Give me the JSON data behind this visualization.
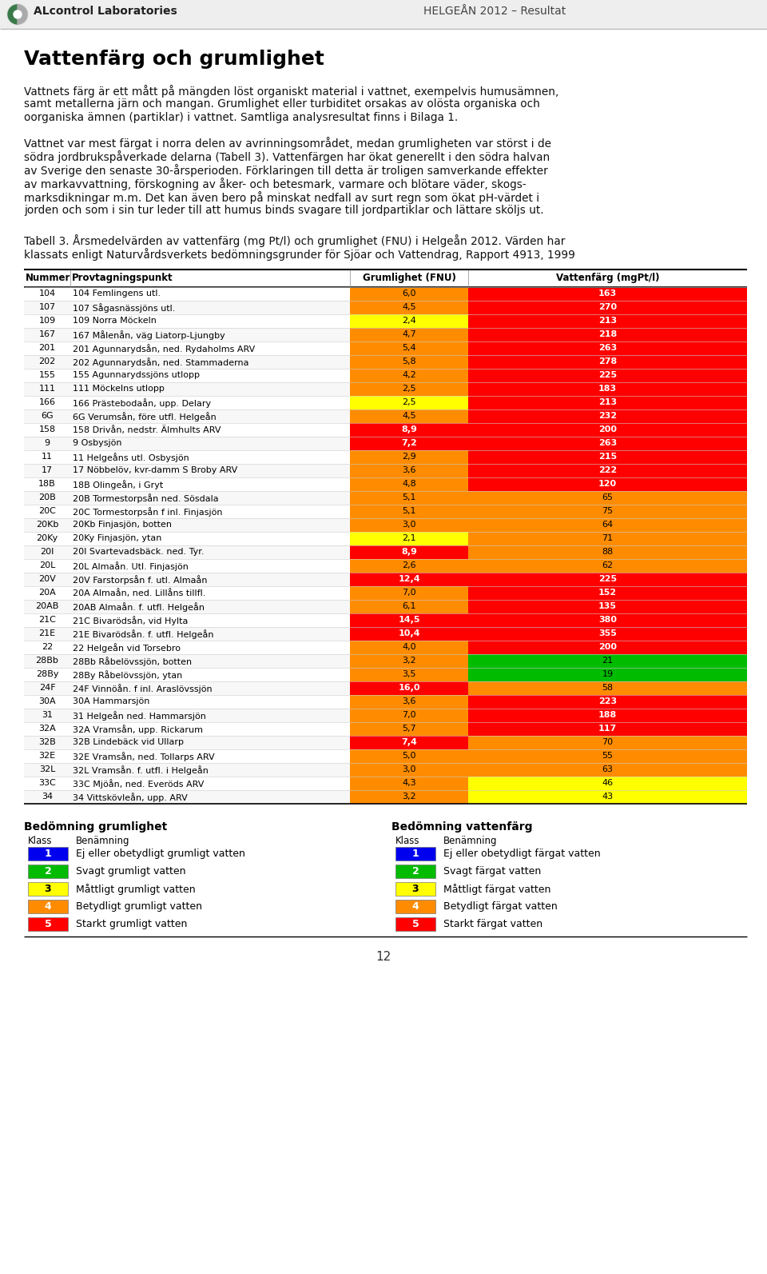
{
  "header_left": "ALcontrol Laboratories",
  "header_right": "HELGEÅN 2012 – Resultat",
  "title": "Vattenfärg och grumlighet",
  "body_text_p1": [
    "Vattnets färg är ett mått på mängden löst organiskt material i vattnet, exempelvis humusämnen,",
    "samt metallerna järn och mangan. Grumlighet eller turbiditet orsakas av olösta organiska och",
    "oorganiska ämnen (partiklar) i vattnet. Samtliga analysresultat finns i Bilaga 1."
  ],
  "body_text_p2": [
    "Vattnet var mest färgat i norra delen av avrinningsområdet, medan grumligheten var störst i de",
    "södra jordbrukspåverkade delarna (Tabell 3). Vattenfärgen har ökat generellt i den södra halvan",
    "av Sverige den senaste 30-årsperioden. Förklaringen till detta är troligen samverkande effekter",
    "av markavvattning, förskogning av åker- och betesmark, varmare och blötare väder, skogs-",
    "marksdikningar m.m. Det kan även bero på minskat nedfall av surt regn som ökat pH-värdet i",
    "jorden och som i sin tur leder till att humus binds svagare till jordpartiklar och lättare sköljs ut."
  ],
  "table_caption_lines": [
    "Tabell 3. Årsmedelvärden av vattenfärg (mg Pt/l) och grumlighet (FNU) i Helgeån 2012. Värden har",
    "klassats enligt Naturvårdsverkets bedömningsgrunder för Sjöar och Vattendrag, Rapport 4913, 1999"
  ],
  "rows": [
    {
      "num": "104",
      "name": "104 Femlingens utl.",
      "grum_val": "6,0",
      "grum_color": "#FF8C00",
      "farg_val": "163",
      "farg_color": "#FF0000"
    },
    {
      "num": "107",
      "name": "107 Sågasnässjöns utl.",
      "grum_val": "4,5",
      "grum_color": "#FF8C00",
      "farg_val": "270",
      "farg_color": "#FF0000"
    },
    {
      "num": "109",
      "name": "109 Norra Möckeln",
      "grum_val": "2,4",
      "grum_color": "#FFFF00",
      "farg_val": "213",
      "farg_color": "#FF0000"
    },
    {
      "num": "167",
      "name": "167 Målenån, väg Liatorp-Ljungby",
      "grum_val": "4,7",
      "grum_color": "#FF8C00",
      "farg_val": "218",
      "farg_color": "#FF0000"
    },
    {
      "num": "201",
      "name": "201 Agunnarydsån, ned. Rydaholms ARV",
      "grum_val": "5,4",
      "grum_color": "#FF8C00",
      "farg_val": "263",
      "farg_color": "#FF0000"
    },
    {
      "num": "202",
      "name": "202 Agunnarydsån, ned. Stammaderna",
      "grum_val": "5,8",
      "grum_color": "#FF8C00",
      "farg_val": "278",
      "farg_color": "#FF0000"
    },
    {
      "num": "155",
      "name": "155 Agunnarydssjöns utlopp",
      "grum_val": "4,2",
      "grum_color": "#FF8C00",
      "farg_val": "225",
      "farg_color": "#FF0000"
    },
    {
      "num": "111",
      "name": "111 Möckelns utlopp",
      "grum_val": "2,5",
      "grum_color": "#FF8C00",
      "farg_val": "183",
      "farg_color": "#FF0000"
    },
    {
      "num": "166",
      "name": "166 Prästebodaån, upp. Delary",
      "grum_val": "2,5",
      "grum_color": "#FFFF00",
      "farg_val": "213",
      "farg_color": "#FF0000"
    },
    {
      "num": "6G",
      "name": "6G Verumsån, före utfl. Helgeån",
      "grum_val": "4,5",
      "grum_color": "#FF8C00",
      "farg_val": "232",
      "farg_color": "#FF0000"
    },
    {
      "num": "158",
      "name": "158 Drivån, nedstr. Älmhults ARV",
      "grum_val": "8,9",
      "grum_color": "#FF0000",
      "farg_val": "200",
      "farg_color": "#FF0000"
    },
    {
      "num": "9",
      "name": "9 Osbysjön",
      "grum_val": "7,2",
      "grum_color": "#FF0000",
      "farg_val": "263",
      "farg_color": "#FF0000"
    },
    {
      "num": "11",
      "name": "11 Helgeåns utl. Osbysjön",
      "grum_val": "2,9",
      "grum_color": "#FF8C00",
      "farg_val": "215",
      "farg_color": "#FF0000"
    },
    {
      "num": "17",
      "name": "17 Nöbbelöv, kvr-damm S Broby ARV",
      "grum_val": "3,6",
      "grum_color": "#FF8C00",
      "farg_val": "222",
      "farg_color": "#FF0000"
    },
    {
      "num": "18B",
      "name": "18B Olingeån, i Gryt",
      "grum_val": "4,8",
      "grum_color": "#FF8C00",
      "farg_val": "120",
      "farg_color": "#FF0000"
    },
    {
      "num": "20B",
      "name": "20B Tormestorpsån ned. Sösdala",
      "grum_val": "5,1",
      "grum_color": "#FF8C00",
      "farg_val": "65",
      "farg_color": "#FF8C00"
    },
    {
      "num": "20C",
      "name": "20C Tormestorpsån f inl. Finjasjön",
      "grum_val": "5,1",
      "grum_color": "#FF8C00",
      "farg_val": "75",
      "farg_color": "#FF8C00"
    },
    {
      "num": "20Kb",
      "name": "20Kb Finjasjön, botten",
      "grum_val": "3,0",
      "grum_color": "#FF8C00",
      "farg_val": "64",
      "farg_color": "#FF8C00"
    },
    {
      "num": "20Ky",
      "name": "20Ky Finjasjön, ytan",
      "grum_val": "2,1",
      "grum_color": "#FFFF00",
      "farg_val": "71",
      "farg_color": "#FF8C00"
    },
    {
      "num": "20I",
      "name": "20I Svartevadsbäck. ned. Tyr.",
      "grum_val": "8,9",
      "grum_color": "#FF0000",
      "farg_val": "88",
      "farg_color": "#FF8C00"
    },
    {
      "num": "20L",
      "name": "20L Almaån. Utl. Finjasjön",
      "grum_val": "2,6",
      "grum_color": "#FF8C00",
      "farg_val": "62",
      "farg_color": "#FF8C00"
    },
    {
      "num": "20V",
      "name": "20V Farstorpsån f. utl. Almaån",
      "grum_val": "12,4",
      "grum_color": "#FF0000",
      "farg_val": "225",
      "farg_color": "#FF0000"
    },
    {
      "num": "20A",
      "name": "20A Almaån, ned. Lillåns tillfl.",
      "grum_val": "7,0",
      "grum_color": "#FF8C00",
      "farg_val": "152",
      "farg_color": "#FF0000"
    },
    {
      "num": "20AB",
      "name": "20AB Almaån. f. utfl. Helgeån",
      "grum_val": "6,1",
      "grum_color": "#FF8C00",
      "farg_val": "135",
      "farg_color": "#FF0000"
    },
    {
      "num": "21C",
      "name": "21C Bivarödsån, vid Hylta",
      "grum_val": "14,5",
      "grum_color": "#FF0000",
      "farg_val": "380",
      "farg_color": "#FF0000"
    },
    {
      "num": "21E",
      "name": "21E Bivarödsån. f. utfl. Helgeån",
      "grum_val": "10,4",
      "grum_color": "#FF0000",
      "farg_val": "355",
      "farg_color": "#FF0000"
    },
    {
      "num": "22",
      "name": "22 Helgeån vid Torsebro",
      "grum_val": "4,0",
      "grum_color": "#FF8C00",
      "farg_val": "200",
      "farg_color": "#FF0000"
    },
    {
      "num": "28Bb",
      "name": "28Bb Råbelövssjön, botten",
      "grum_val": "3,2",
      "grum_color": "#FF8C00",
      "farg_val": "21",
      "farg_color": "#00BB00"
    },
    {
      "num": "28By",
      "name": "28By Råbelövssjön, ytan",
      "grum_val": "3,5",
      "grum_color": "#FF8C00",
      "farg_val": "19",
      "farg_color": "#00BB00"
    },
    {
      "num": "24F",
      "name": "24F Vinnöån. f inl. Araslövssjön",
      "grum_val": "16,0",
      "grum_color": "#FF0000",
      "farg_val": "58",
      "farg_color": "#FF8C00"
    },
    {
      "num": "30A",
      "name": "30A Hammarsjön",
      "grum_val": "3,6",
      "grum_color": "#FF8C00",
      "farg_val": "223",
      "farg_color": "#FF0000"
    },
    {
      "num": "31",
      "name": "31 Helgeån ned. Hammarsjön",
      "grum_val": "7,0",
      "grum_color": "#FF8C00",
      "farg_val": "188",
      "farg_color": "#FF0000"
    },
    {
      "num": "32A",
      "name": "32A Vramsån, upp. Rickarum",
      "grum_val": "5,7",
      "grum_color": "#FF8C00",
      "farg_val": "117",
      "farg_color": "#FF0000"
    },
    {
      "num": "32B",
      "name": "32B Lindebäck vid Ullarp",
      "grum_val": "7,4",
      "grum_color": "#FF0000",
      "farg_val": "70",
      "farg_color": "#FF8C00"
    },
    {
      "num": "32E",
      "name": "32E Vramsån, ned. Tollarps ARV",
      "grum_val": "5,0",
      "grum_color": "#FF8C00",
      "farg_val": "55",
      "farg_color": "#FF8C00"
    },
    {
      "num": "32L",
      "name": "32L Vramsån. f. utfl. i Helgeån",
      "grum_val": "3,0",
      "grum_color": "#FF8C00",
      "farg_val": "63",
      "farg_color": "#FF8C00"
    },
    {
      "num": "33C",
      "name": "33C Mjöån, ned. Everöds ARV",
      "grum_val": "4,3",
      "grum_color": "#FF8C00",
      "farg_val": "46",
      "farg_color": "#FFFF00"
    },
    {
      "num": "34",
      "name": "34 Vittskövleån, upp. ARV",
      "grum_val": "3,2",
      "grum_color": "#FF8C00",
      "farg_val": "43",
      "farg_color": "#FFFF00"
    }
  ],
  "legend_grum_title": "Bedömning grumlighet",
  "legend_farg_title": "Bedömning vattenfärg",
  "legend_items_grum": [
    {
      "klass": "1",
      "color": "#0000EE",
      "desc": "Ej eller obetydligt grumligt vatten"
    },
    {
      "klass": "2",
      "color": "#00BB00",
      "desc": "Svagt grumligt vatten"
    },
    {
      "klass": "3",
      "color": "#FFFF00",
      "desc": "Måttligt grumligt vatten"
    },
    {
      "klass": "4",
      "color": "#FF8C00",
      "desc": "Betydligt grumligt vatten"
    },
    {
      "klass": "5",
      "color": "#FF0000",
      "desc": "Starkt grumligt vatten"
    }
  ],
  "legend_items_farg": [
    {
      "klass": "1",
      "color": "#0000EE",
      "desc": "Ej eller obetydligt färgat vatten"
    },
    {
      "klass": "2",
      "color": "#00BB00",
      "desc": "Svagt färgat vatten"
    },
    {
      "klass": "3",
      "color": "#FFFF00",
      "desc": "Måttligt färgat vatten"
    },
    {
      "klass": "4",
      "color": "#FF8C00",
      "desc": "Betydligt färgat vatten"
    },
    {
      "klass": "5",
      "color": "#FF0000",
      "desc": "Starkt färgat vatten"
    }
  ],
  "page_number": "12"
}
